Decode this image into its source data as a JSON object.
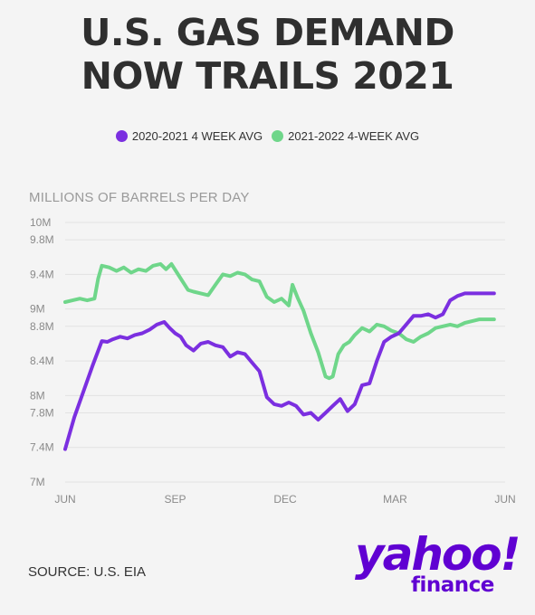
{
  "header": {
    "title_line1": "U.S. GAS DEMAND",
    "title_line2": "NOW TRAILS 2021"
  },
  "footer": {
    "source": "SOURCE: U.S. EIA",
    "logo_main": "yahoo!",
    "logo_sub": "finance"
  },
  "colors": {
    "purple": "#7b2fe0",
    "green": "#6fd68a",
    "brand": "#6001d2"
  },
  "chart_data": {
    "type": "line",
    "ylabel": "MILLIONS OF BARRELS PER DAY",
    "xlabel": "",
    "ylim": [
      7.0,
      10.0
    ],
    "yticks": [
      {
        "value": 10.0,
        "label": "10M"
      },
      {
        "value": 9.8,
        "label": "9.8M"
      },
      {
        "value": 9.4,
        "label": "9.4M"
      },
      {
        "value": 9.0,
        "label": "9M"
      },
      {
        "value": 8.8,
        "label": "8.8M"
      },
      {
        "value": 8.4,
        "label": "8.4M"
      },
      {
        "value": 8.0,
        "label": "8M"
      },
      {
        "value": 7.8,
        "label": "7.8M"
      },
      {
        "value": 7.4,
        "label": "7.4M"
      },
      {
        "value": 7.0,
        "label": "7M"
      }
    ],
    "xlim": [
      0,
      12
    ],
    "xticks": [
      {
        "value": 0,
        "label": "JUN"
      },
      {
        "value": 3,
        "label": "SEP"
      },
      {
        "value": 6,
        "label": "DEC"
      },
      {
        "value": 9,
        "label": "MAR"
      },
      {
        "value": 12,
        "label": "JUN"
      }
    ],
    "grid": true,
    "legend_position": "top-center",
    "series": [
      {
        "name": "2020-2021 4 WEEK AVG",
        "color": "#7b2fe0",
        "x": [
          0.0,
          0.25,
          0.5,
          0.75,
          1.0,
          1.15,
          1.3,
          1.5,
          1.7,
          1.9,
          2.1,
          2.3,
          2.5,
          2.7,
          2.85,
          3.0,
          3.15,
          3.3,
          3.5,
          3.7,
          3.9,
          4.1,
          4.3,
          4.5,
          4.7,
          4.9,
          5.1,
          5.3,
          5.5,
          5.7,
          5.9,
          6.1,
          6.3,
          6.5,
          6.7,
          6.9,
          7.1,
          7.3,
          7.5,
          7.7,
          7.9,
          8.1,
          8.3,
          8.5,
          8.7,
          8.9,
          9.1,
          9.3,
          9.5,
          9.7,
          9.9,
          10.1,
          10.3,
          10.5,
          10.7,
          10.9,
          11.1,
          11.3,
          11.5,
          11.7
        ],
        "values": [
          7.38,
          7.75,
          8.05,
          8.35,
          8.63,
          8.62,
          8.65,
          8.68,
          8.66,
          8.7,
          8.72,
          8.76,
          8.82,
          8.85,
          8.78,
          8.72,
          8.68,
          8.58,
          8.52,
          8.6,
          8.62,
          8.58,
          8.56,
          8.45,
          8.5,
          8.48,
          8.38,
          8.28,
          7.98,
          7.9,
          7.88,
          7.92,
          7.88,
          7.78,
          7.8,
          7.72,
          7.8,
          7.88,
          7.96,
          7.82,
          7.9,
          8.12,
          8.14,
          8.4,
          8.62,
          8.68,
          8.72,
          8.82,
          8.92,
          8.92,
          8.94,
          8.9,
          8.94,
          9.1,
          9.15,
          9.18,
          9.18,
          9.18,
          9.18,
          9.18
        ]
      },
      {
        "name": "2021-2022 4-WEEK AVG",
        "color": "#6fd68a",
        "x": [
          0.0,
          0.2,
          0.4,
          0.6,
          0.8,
          0.9,
          1.0,
          1.2,
          1.4,
          1.6,
          1.8,
          2.0,
          2.2,
          2.4,
          2.6,
          2.75,
          2.9,
          3.05,
          3.2,
          3.35,
          3.5,
          3.7,
          3.9,
          4.1,
          4.3,
          4.5,
          4.7,
          4.9,
          5.1,
          5.3,
          5.5,
          5.7,
          5.9,
          6.1,
          6.2,
          6.35,
          6.5,
          6.7,
          6.9,
          7.1,
          7.2,
          7.3,
          7.45,
          7.6,
          7.75,
          7.9,
          8.1,
          8.3,
          8.5,
          8.7,
          8.9,
          9.1,
          9.3,
          9.5,
          9.7,
          9.9,
          10.1,
          10.3,
          10.5,
          10.7,
          10.9,
          11.1,
          11.3,
          11.5,
          11.7
        ],
        "values": [
          9.08,
          9.1,
          9.12,
          9.1,
          9.12,
          9.35,
          9.5,
          9.48,
          9.44,
          9.48,
          9.42,
          9.46,
          9.44,
          9.5,
          9.52,
          9.46,
          9.52,
          9.42,
          9.32,
          9.22,
          9.2,
          9.18,
          9.16,
          9.28,
          9.4,
          9.38,
          9.42,
          9.4,
          9.34,
          9.32,
          9.14,
          9.08,
          9.12,
          9.04,
          9.28,
          9.12,
          8.98,
          8.72,
          8.5,
          8.22,
          8.2,
          8.22,
          8.48,
          8.58,
          8.62,
          8.7,
          8.78,
          8.74,
          8.82,
          8.8,
          8.75,
          8.72,
          8.65,
          8.62,
          8.68,
          8.72,
          8.78,
          8.8,
          8.82,
          8.8,
          8.84,
          8.86,
          8.88,
          8.88,
          8.88
        ]
      }
    ]
  }
}
